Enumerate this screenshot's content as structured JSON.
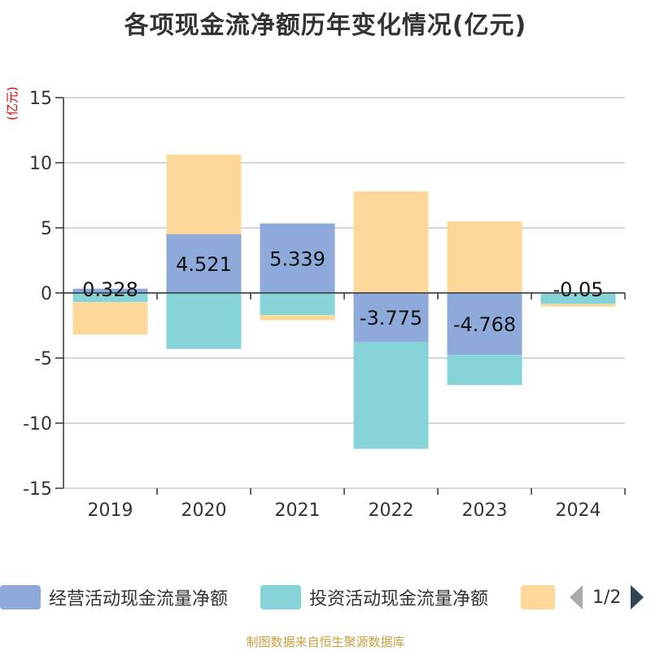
{
  "chart_data": {
    "type": "bar",
    "stacked": true,
    "title": "各项现金流净额历年变化情况(亿元)",
    "ylabel": "(亿元)",
    "categories": [
      "2019",
      "2020",
      "2021",
      "2022",
      "2023",
      "2024"
    ],
    "ylim": [
      -15,
      15
    ],
    "yticks": [
      15,
      10,
      5,
      0,
      -5,
      -10,
      -15
    ],
    "grid": true,
    "series": [
      {
        "name": "经营活动现金流量净额",
        "color": "#8eaadb",
        "values": [
          0.328,
          4.521,
          5.339,
          -3.775,
          -4.768,
          -0.05
        ],
        "labels": [
          "0.328",
          "4.521",
          "5.339",
          "-3.775",
          "-4.768",
          "-0.05"
        ]
      },
      {
        "name": "投资活动现金流量净额",
        "color": "#86d4d8",
        "values": [
          -0.7,
          -4.3,
          -1.7,
          -8.2,
          -2.3,
          -0.8
        ]
      },
      {
        "name": "",
        "color": "#fdd89a",
        "values": [
          -2.5,
          6.1,
          -0.4,
          7.8,
          5.5,
          -0.2
        ]
      }
    ],
    "legend_position": "bottom"
  },
  "legend": {
    "items": [
      {
        "label": "经营活动现金流量净额",
        "color": "#8eaadb"
      },
      {
        "label": "投资活动现金流量净额",
        "color": "#86d4d8"
      },
      {
        "label": "",
        "color": "#fdd89a"
      }
    ],
    "page": "1/2"
  },
  "source": "制图数据来自恒生聚源数据库"
}
